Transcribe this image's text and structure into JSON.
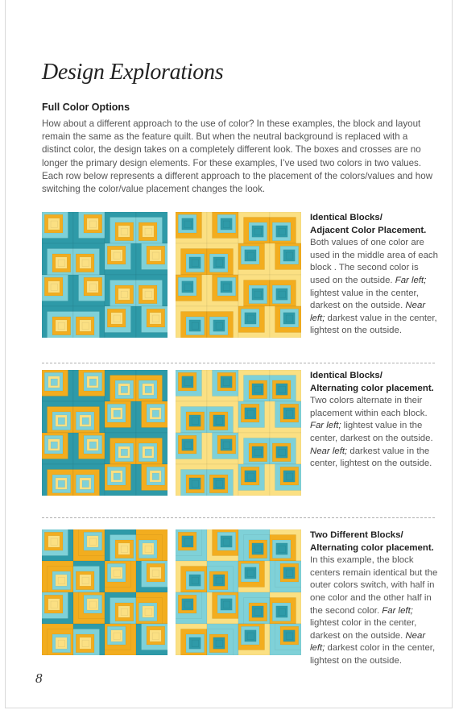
{
  "title": "Design Explorations",
  "subheading": "Full Color Options",
  "intro": "How about a different approach to the use of color?  In these examples, the block and layout remain the same as the feature quilt. But when the neutral background is replaced with a distinct color, the design takes on a completely different look. The boxes and crosses are no longer the primary design elements. For these examples, I’ve used two colors in two values. Each row below represents a different approach to the placement of the colors/values and how switching the color/value placement changes the look.",
  "colors": {
    "teal_dark": "#2e9aa8",
    "teal_light": "#7fd1d8",
    "gold_dark": "#f2ad1f",
    "gold_light": "#fbe083"
  },
  "rows": [
    {
      "heading_1": "Identical Blocks/",
      "heading_2": "Adjacent Color Placement.",
      "body_1": "Both values of one color are used in the middle area of each block . The second color is used on the outside. ",
      "far_left_label": "Far left;",
      "far_left_text": " lightest value in the center, darkest on the outside. ",
      "near_left_label": "Near left;",
      "near_left_text": " darkest value in the center, lightest on the outside."
    },
    {
      "heading_1": "Identical Blocks/",
      "heading_2": "Alternating color placement.",
      "body_1": "Two colors alternate in their placement within each block. ",
      "far_left_label": "Far left;",
      "far_left_text": " lightest value in the center, darkest on the outside. ",
      "near_left_label": "Near left;",
      "near_left_text": "  darkest value in the center, lightest on the outside."
    },
    {
      "heading_1": "Two Different Blocks/",
      "heading_2": "Alternating color placement.",
      "body_1": "In this example, the block centers remain identical but the outer colors switch, with half in one color and the other half in the second color.  ",
      "far_left_label": "Far left;",
      "far_left_text": " lightest color in the center, darkest on the outside.  ",
      "near_left_label": "Near left;",
      "near_left_text": " darkest color in the center, lightest on the outside."
    }
  ],
  "page_number": "8"
}
